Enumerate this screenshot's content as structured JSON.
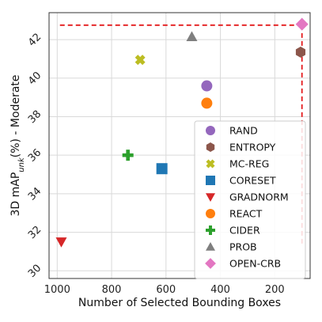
{
  "chart_data": {
    "type": "scatter",
    "xlabel": "Number of Selected Bounding Boxes",
    "ylabel_main": "3D mAP",
    "ylabel_sub": "unk",
    "ylabel_rest": "(%) - Moderate",
    "xlim": [
      1030,
      70
    ],
    "ylim": [
      29.6,
      43.4
    ],
    "x_ticks": [
      1000,
      800,
      600,
      400,
      200
    ],
    "y_ticks": [
      30,
      32,
      34,
      36,
      38,
      40,
      42
    ],
    "grid": true,
    "legend_position": "lower-right",
    "series": [
      {
        "name": "RAND",
        "marker": "circle",
        "color": "#9467bd",
        "x": 450,
        "y": 39.6
      },
      {
        "name": "RAND",
        "marker": "circle",
        "color": "#9467bd",
        "x": 450,
        "y": 39.6
      },
      {
        "name": "ENTROPY",
        "marker": "hexagon",
        "color": "#8c564b",
        "x": 105,
        "y": 41.35
      },
      {
        "name": "MC-REG",
        "marker": "x",
        "color": "#bcbd22",
        "x": 695,
        "y": 40.95
      },
      {
        "name": "CORESET",
        "marker": "square",
        "color": "#1f77b4",
        "x": 615,
        "y": 35.3
      },
      {
        "name": "GRADNORM",
        "marker": "triangle-down",
        "color": "#d62728",
        "x": 985,
        "y": 31.5
      },
      {
        "name": "REACT",
        "marker": "circle",
        "color": "#ff7f0e",
        "x": 450,
        "y": 38.7
      },
      {
        "name": "CIDER",
        "marker": "plus",
        "color": "#2ca02c",
        "x": 740,
        "y": 36.0
      },
      {
        "name": "PROB",
        "marker": "triangle-up",
        "color": "#7f7f7f",
        "x": 505,
        "y": 42.15
      },
      {
        "name": "OPEN-CRB",
        "marker": "diamond",
        "color": "#e377c2",
        "x": 100,
        "y": 42.8
      }
    ],
    "reference_lines": {
      "color": "#e41a1c",
      "horizontal": {
        "y": 42.75,
        "x_from": 990,
        "x_to": 100
      },
      "vertical": {
        "x": 100,
        "y_from": 42.75,
        "y_to": 31.4
      }
    }
  }
}
